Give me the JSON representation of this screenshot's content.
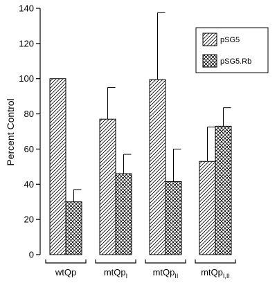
{
  "chart_data": {
    "type": "bar",
    "ylabel": "Percent Control",
    "ylim": [
      0,
      140
    ],
    "yticks": [
      0,
      20,
      40,
      60,
      80,
      100,
      120,
      140
    ],
    "categories": [
      {
        "base": "wtQp",
        "sub": ""
      },
      {
        "base": "mtQp",
        "sub": "I"
      },
      {
        "base": "mtQp",
        "sub": "II"
      },
      {
        "base": "mtQp",
        "sub": "I,II"
      }
    ],
    "series": [
      {
        "name": "pSG5",
        "pattern": "diagonal",
        "values": [
          100,
          77,
          99.5,
          53
        ],
        "errors": [
          0,
          18,
          38,
          19.5
        ]
      },
      {
        "name": "pSG5.Rb",
        "pattern": "crosshatch",
        "values": [
          30,
          46,
          41.5,
          73
        ],
        "errors": [
          7,
          11,
          18.5,
          10.5
        ]
      }
    ],
    "legend": "top-right"
  }
}
